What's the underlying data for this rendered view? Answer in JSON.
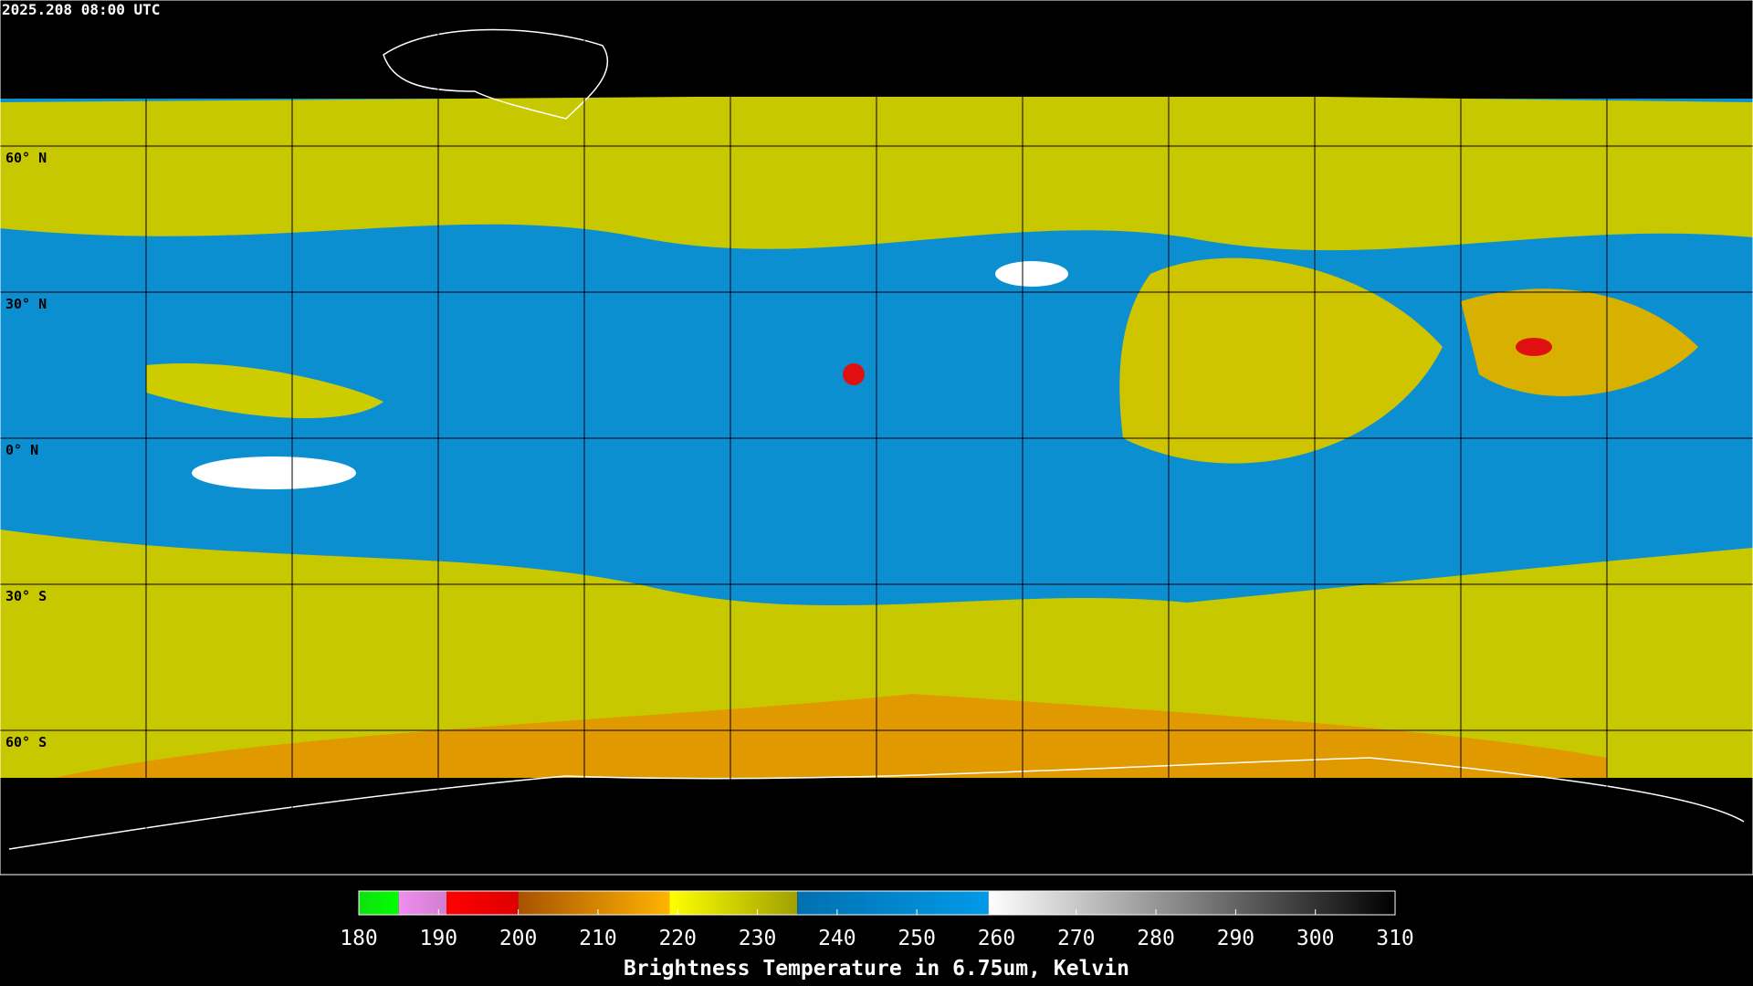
{
  "header": {
    "timestamp": "2025.208 08:00 UTC"
  },
  "latitude_lines": [
    {
      "value": 60,
      "label": "60° N"
    },
    {
      "value": 30,
      "label": "30° N"
    },
    {
      "value": 0,
      "label": "0° N"
    },
    {
      "value": -30,
      "label": "30° S"
    },
    {
      "value": -60,
      "label": "60° S"
    }
  ],
  "colorbar": {
    "range": [
      180,
      310
    ],
    "ticks": [
      180,
      190,
      200,
      210,
      220,
      230,
      240,
      250,
      260,
      270,
      280,
      290,
      300,
      310
    ],
    "segments": [
      {
        "from": 180,
        "to": 185,
        "colors": [
          "#10e010",
          "#00ff00"
        ]
      },
      {
        "from": 185,
        "to": 191,
        "colors": [
          "#f08cf0",
          "#d080d0"
        ]
      },
      {
        "from": 191,
        "to": 200,
        "colors": [
          "#ff0000",
          "#dd0000"
        ]
      },
      {
        "from": 200,
        "to": 219,
        "colors": [
          "#a85200",
          "#ffb400"
        ]
      },
      {
        "from": 219,
        "to": 235,
        "colors": [
          "#ffff00",
          "#a0a000"
        ]
      },
      {
        "from": 235,
        "to": 259,
        "colors": [
          "#0070b0",
          "#009ae8"
        ]
      },
      {
        "from": 259,
        "to": 310,
        "colors": [
          "#ffffff",
          "#000000"
        ]
      }
    ],
    "label": "Brightness Temperature in 6.75um, Kelvin"
  }
}
